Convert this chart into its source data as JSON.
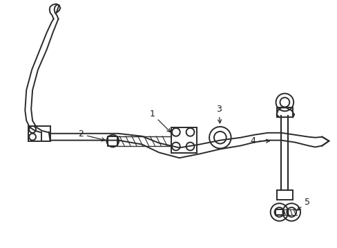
{
  "bg_color": "#ffffff",
  "line_color": "#2a2a2a",
  "label_color": "#1a1a1a",
  "figsize": [
    4.89,
    3.6
  ],
  "dpi": 100
}
